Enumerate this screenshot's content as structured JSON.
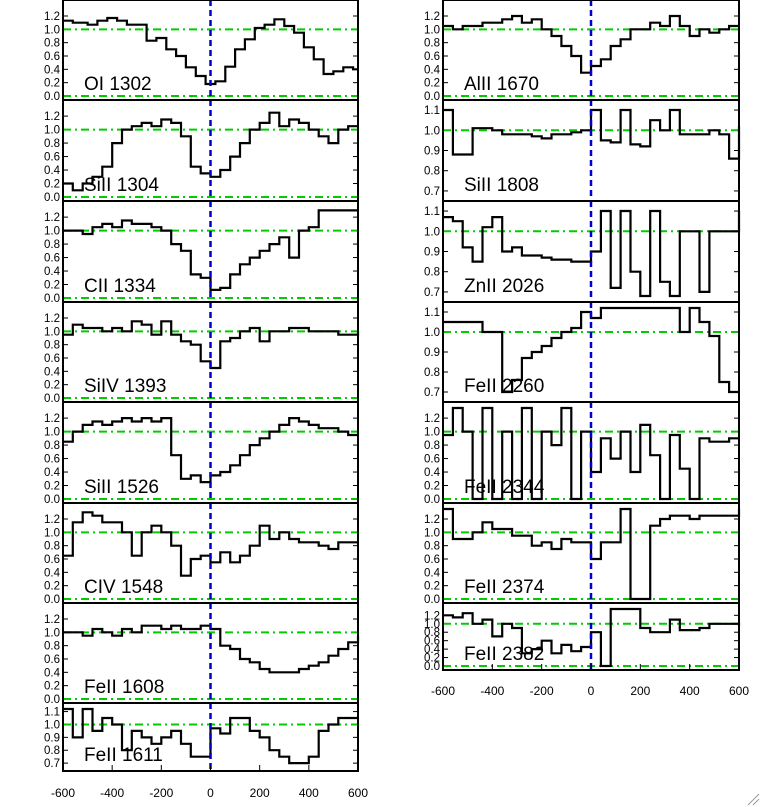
{
  "chart_data": [
    {
      "type": "line",
      "column": "left",
      "ion": "OI 1302",
      "ylim": [
        0,
        1.35
      ],
      "yticks": [
        "1.2",
        "1.0",
        "0.8",
        "0.6",
        "0.4",
        "0.2",
        "0.0"
      ],
      "ytick_values": [
        1.2,
        1.0,
        0.8,
        0.6,
        0.4,
        0.2,
        0.0
      ],
      "continuum": 1.0,
      "zero": 0.0,
      "x": [
        -600,
        -560,
        -500,
        -460,
        -420,
        -380,
        -340,
        -260,
        -220,
        -180,
        -140,
        -100,
        -60,
        -20,
        20,
        60,
        100,
        140,
        180,
        220,
        260,
        300,
        340,
        380,
        420,
        460,
        500,
        540,
        580,
        600
      ],
      "y": [
        1.13,
        1.1,
        1.07,
        1.13,
        1.17,
        1.13,
        1.07,
        0.83,
        0.87,
        0.7,
        0.6,
        0.43,
        0.3,
        0.18,
        0.22,
        0.44,
        0.7,
        0.85,
        1.02,
        1.07,
        1.15,
        1.05,
        0.95,
        0.73,
        0.55,
        0.33,
        0.37,
        0.43,
        0.4,
        0.4
      ]
    },
    {
      "type": "line",
      "column": "left",
      "ion": "SiII 1304",
      "ylim": [
        0,
        1.35
      ],
      "yticks": [
        "1.2",
        "1.0",
        "0.8",
        "0.6",
        "0.4",
        "0.2",
        "0.0"
      ],
      "ytick_values": [
        1.2,
        1.0,
        0.8,
        0.6,
        0.4,
        0.2,
        0.0
      ],
      "continuum": 1.0,
      "zero": 0.0,
      "x": [
        -600,
        -560,
        -520,
        -480,
        -440,
        -400,
        -360,
        -320,
        -280,
        -240,
        -200,
        -160,
        -120,
        -80,
        -40,
        0,
        40,
        80,
        120,
        160,
        200,
        240,
        280,
        320,
        360,
        400,
        440,
        480,
        520,
        560,
        600
      ],
      "y": [
        0.2,
        0.1,
        0.2,
        0.3,
        0.45,
        0.8,
        1.0,
        1.05,
        1.1,
        1.05,
        1.15,
        1.1,
        0.9,
        0.45,
        0.35,
        0.3,
        0.4,
        0.6,
        0.8,
        1.0,
        1.1,
        1.25,
        1.05,
        1.15,
        1.1,
        1.0,
        0.9,
        0.8,
        1.0,
        1.05,
        1.05
      ]
    },
    {
      "type": "line",
      "column": "left",
      "ion": "CII 1334",
      "ylim": [
        0,
        1.35
      ],
      "yticks": [
        "1.2",
        "1.0",
        "0.8",
        "0.6",
        "0.4",
        "0.2",
        "0.0"
      ],
      "ytick_values": [
        1.2,
        1.0,
        0.8,
        0.6,
        0.4,
        0.2,
        0.0
      ],
      "continuum": 1.0,
      "zero": 0.0,
      "x": [
        -600,
        -560,
        -520,
        -480,
        -440,
        -400,
        -360,
        -320,
        -280,
        -240,
        -200,
        -160,
        -120,
        -80,
        -40,
        0,
        40,
        80,
        120,
        160,
        200,
        240,
        280,
        320,
        360,
        400,
        440,
        480,
        520,
        560,
        600
      ],
      "y": [
        1.0,
        1.0,
        0.95,
        1.05,
        1.1,
        1.05,
        1.15,
        1.1,
        1.1,
        1.05,
        1.0,
        0.8,
        0.7,
        0.35,
        0.3,
        0.12,
        0.15,
        0.35,
        0.5,
        0.6,
        0.7,
        0.8,
        0.9,
        0.6,
        1.0,
        1.05,
        1.3,
        1.3,
        1.3,
        1.3,
        1.3
      ]
    },
    {
      "type": "line",
      "column": "left",
      "ion": "SiIV 1393",
      "ylim": [
        0,
        1.35
      ],
      "yticks": [
        "1.2",
        "1.0",
        "0.8",
        "0.6",
        "0.4",
        "0.2",
        "0.0"
      ],
      "ytick_values": [
        1.2,
        1.0,
        0.8,
        0.6,
        0.4,
        0.2,
        0.0
      ],
      "continuum": 1.0,
      "zero": 0.0,
      "x": [
        -600,
        -560,
        -520,
        -480,
        -440,
        -400,
        -360,
        -320,
        -280,
        -240,
        -200,
        -160,
        -120,
        -80,
        -40,
        0,
        40,
        80,
        120,
        160,
        200,
        240,
        280,
        320,
        360,
        400,
        440,
        480,
        520,
        560,
        600
      ],
      "y": [
        0.95,
        1.1,
        1.05,
        1.05,
        1.0,
        1.05,
        1.0,
        1.15,
        1.1,
        0.95,
        1.15,
        0.95,
        0.85,
        0.8,
        0.55,
        0.45,
        0.85,
        0.9,
        1.0,
        1.05,
        0.85,
        1.0,
        1.0,
        1.05,
        1.05,
        1.0,
        1.0,
        1.0,
        0.95,
        0.95,
        1.0
      ]
    },
    {
      "type": "line",
      "column": "left",
      "ion": "SiII 1526",
      "ylim": [
        0,
        1.35
      ],
      "yticks": [
        "1.2",
        "1.0",
        "0.8",
        "0.6",
        "0.4",
        "0.2",
        "0.0"
      ],
      "ytick_values": [
        1.2,
        1.0,
        0.8,
        0.6,
        0.4,
        0.2,
        0.0
      ],
      "continuum": 1.0,
      "zero": 0.0,
      "x": [
        -600,
        -560,
        -520,
        -480,
        -440,
        -400,
        -360,
        -320,
        -280,
        -240,
        -200,
        -160,
        -120,
        -80,
        -40,
        0,
        40,
        80,
        120,
        160,
        200,
        240,
        280,
        320,
        360,
        400,
        440,
        480,
        520,
        560,
        600
      ],
      "y": [
        0.85,
        1.0,
        1.1,
        1.15,
        1.1,
        1.15,
        1.2,
        1.15,
        1.2,
        1.15,
        1.2,
        0.65,
        0.3,
        0.35,
        0.25,
        0.35,
        0.4,
        0.5,
        0.65,
        0.8,
        0.9,
        1.0,
        1.1,
        1.2,
        1.15,
        1.1,
        1.05,
        1.05,
        1.0,
        0.95,
        0.95
      ]
    },
    {
      "type": "line",
      "column": "left",
      "ion": "CIV 1548",
      "ylim": [
        0,
        1.35
      ],
      "yticks": [
        "1.2",
        "1.0",
        "0.8",
        "0.6",
        "0.4",
        "0.2",
        "0.0"
      ],
      "ytick_values": [
        1.2,
        1.0,
        0.8,
        0.6,
        0.4,
        0.2,
        0.0
      ],
      "continuum": 1.0,
      "zero": 0.0,
      "x": [
        -600,
        -560,
        -520,
        -480,
        -440,
        -400,
        -360,
        -320,
        -280,
        -240,
        -200,
        -160,
        -120,
        -80,
        -40,
        0,
        40,
        80,
        120,
        160,
        200,
        240,
        280,
        320,
        360,
        400,
        440,
        480,
        520,
        560,
        600
      ],
      "y": [
        0.65,
        1.15,
        1.3,
        1.25,
        1.15,
        1.15,
        1.0,
        0.65,
        1.0,
        1.1,
        1.0,
        0.8,
        0.35,
        0.6,
        0.65,
        0.55,
        0.7,
        0.55,
        0.65,
        0.8,
        1.1,
        0.9,
        1.0,
        0.9,
        0.85,
        0.85,
        0.8,
        0.75,
        0.85,
        0.85,
        0.85
      ]
    },
    {
      "type": "line",
      "column": "left",
      "ion": "FeII 1608",
      "ylim": [
        0,
        1.35
      ],
      "yticks": [
        "1.2",
        "1.0",
        "0.8",
        "0.6",
        "0.4",
        "0.2",
        "0.0"
      ],
      "ytick_values": [
        1.2,
        1.0,
        0.8,
        0.6,
        0.4,
        0.2,
        0.0
      ],
      "continuum": 1.0,
      "zero": 0.0,
      "x": [
        -600,
        -560,
        -520,
        -480,
        -440,
        -400,
        -360,
        -320,
        -280,
        -240,
        -200,
        -160,
        -120,
        -80,
        -40,
        0,
        40,
        80,
        120,
        160,
        200,
        240,
        280,
        320,
        360,
        400,
        440,
        480,
        520,
        560,
        600
      ],
      "y": [
        1.0,
        1.0,
        0.95,
        1.05,
        1.0,
        0.95,
        1.05,
        1.0,
        1.1,
        1.1,
        1.05,
        1.1,
        1.05,
        1.05,
        1.1,
        1.05,
        0.8,
        0.75,
        0.6,
        0.55,
        0.45,
        0.4,
        0.4,
        0.4,
        0.45,
        0.5,
        0.55,
        0.65,
        0.75,
        0.85,
        0.95
      ]
    },
    {
      "type": "line",
      "column": "left",
      "ion": "FeII 1611",
      "ylim": [
        0.67,
        1.12
      ],
      "yticks": [
        "1.1",
        "1.0",
        "0.9",
        "0.8",
        "0.7"
      ],
      "ytick_values": [
        1.1,
        1.0,
        0.9,
        0.8,
        0.7
      ],
      "continuum": 1.0,
      "x": [
        -600,
        -560,
        -520,
        -480,
        -440,
        -400,
        -360,
        -320,
        -280,
        -240,
        -200,
        -160,
        -120,
        -80,
        -40,
        0,
        40,
        80,
        120,
        160,
        200,
        240,
        280,
        320,
        360,
        400,
        440,
        480,
        520,
        560,
        600
      ],
      "y": [
        1.12,
        0.9,
        1.12,
        0.95,
        1.05,
        1.0,
        0.8,
        0.95,
        0.9,
        0.85,
        0.9,
        0.95,
        0.85,
        0.75,
        0.75,
        0.97,
        0.93,
        1.05,
        1.05,
        0.95,
        0.9,
        0.8,
        0.75,
        0.7,
        0.7,
        0.75,
        0.95,
        1.0,
        1.05,
        1.05,
        1.05
      ]
    },
    {
      "type": "line",
      "column": "right",
      "ion": "AlII 1670",
      "ylim": [
        0,
        1.35
      ],
      "yticks": [
        "1.2",
        "1.0",
        "0.8",
        "0.6",
        "0.4",
        "0.2",
        "0.0"
      ],
      "ytick_values": [
        1.2,
        1.0,
        0.8,
        0.6,
        0.4,
        0.2,
        0.0
      ],
      "continuum": 1.0,
      "zero": 0.0,
      "x": [
        -600,
        -560,
        -520,
        -480,
        -440,
        -400,
        -360,
        -320,
        -280,
        -240,
        -200,
        -160,
        -120,
        -80,
        -40,
        0,
        40,
        80,
        120,
        160,
        200,
        240,
        280,
        320,
        360,
        400,
        440,
        480,
        520,
        560,
        600
      ],
      "y": [
        1.05,
        1.0,
        1.05,
        1.05,
        1.1,
        1.1,
        1.15,
        1.2,
        1.1,
        1.15,
        1.0,
        0.9,
        0.75,
        0.6,
        0.35,
        0.45,
        0.55,
        0.75,
        0.85,
        1.0,
        1.0,
        1.1,
        1.05,
        1.2,
        1.05,
        0.9,
        1.0,
        0.95,
        1.0,
        1.05,
        1.05
      ]
    },
    {
      "type": "line",
      "column": "right",
      "ion": "SiII 1808",
      "ylim": [
        0.67,
        1.12
      ],
      "yticks": [
        "1.1",
        "1.0",
        "0.9",
        "0.8",
        "0.7"
      ],
      "ytick_values": [
        1.1,
        1.0,
        0.9,
        0.8,
        0.7
      ],
      "continuum": 1.0,
      "x": [
        -600,
        -560,
        -520,
        -480,
        -440,
        -400,
        -360,
        -320,
        -280,
        -240,
        -200,
        -160,
        -120,
        -80,
        -40,
        0,
        40,
        80,
        120,
        160,
        200,
        240,
        280,
        320,
        360,
        400,
        440,
        480,
        520,
        560,
        600
      ],
      "y": [
        1.1,
        0.88,
        0.88,
        1.01,
        1.01,
        1.0,
        0.98,
        0.98,
        0.98,
        0.97,
        0.96,
        0.98,
        0.98,
        0.99,
        1.0,
        1.1,
        0.95,
        0.94,
        1.1,
        0.93,
        0.92,
        1.05,
        1.0,
        1.1,
        0.98,
        0.98,
        0.98,
        1.0,
        0.98,
        0.86,
        1.02
      ]
    },
    {
      "type": "line",
      "column": "right",
      "ion": "ZnII 2026",
      "ylim": [
        0.67,
        1.12
      ],
      "yticks": [
        "1.1",
        "1.0",
        "0.9",
        "0.8",
        "0.7"
      ],
      "ytick_values": [
        1.1,
        1.0,
        0.9,
        0.8,
        0.7
      ],
      "continuum": 1.0,
      "x": [
        -600,
        -560,
        -520,
        -480,
        -440,
        -400,
        -360,
        -320,
        -280,
        -240,
        -200,
        -160,
        -120,
        -80,
        -40,
        0,
        40,
        80,
        120,
        160,
        200,
        240,
        280,
        320,
        360,
        400,
        440,
        480,
        520,
        560,
        600
      ],
      "y": [
        1.07,
        1.05,
        0.92,
        0.85,
        1.02,
        1.07,
        0.9,
        0.92,
        0.88,
        0.88,
        0.87,
        0.86,
        0.86,
        0.85,
        0.85,
        0.9,
        1.1,
        0.72,
        1.1,
        0.8,
        0.68,
        1.1,
        0.75,
        0.68,
        1.0,
        1.0,
        0.7,
        1.0,
        1.0,
        1.0,
        1.1
      ]
    },
    {
      "type": "line",
      "column": "right",
      "ion": "FeII 2260",
      "ylim": [
        0.67,
        1.12
      ],
      "yticks": [
        "1.1",
        "1.0",
        "0.9",
        "0.8",
        "0.7"
      ],
      "ytick_values": [
        1.1,
        1.0,
        0.9,
        0.8,
        0.7
      ],
      "continuum": 1.0,
      "x": [
        -600,
        -560,
        -520,
        -480,
        -440,
        -400,
        -360,
        -320,
        -280,
        -240,
        -200,
        -160,
        -120,
        -80,
        -40,
        0,
        40,
        80,
        120,
        160,
        200,
        240,
        280,
        320,
        360,
        400,
        440,
        480,
        520,
        560,
        600
      ],
      "y": [
        1.05,
        1.05,
        1.05,
        1.05,
        1.0,
        1.0,
        0.7,
        0.76,
        0.87,
        0.9,
        0.93,
        0.97,
        1.0,
        1.02,
        1.1,
        1.07,
        1.12,
        1.12,
        1.12,
        1.12,
        1.12,
        1.12,
        1.12,
        1.12,
        1.0,
        1.12,
        1.05,
        0.98,
        0.75,
        0.7,
        0.7
      ]
    },
    {
      "type": "line",
      "column": "right",
      "ion": "FeII 2344",
      "ylim": [
        0,
        1.35
      ],
      "yticks": [
        "1.2",
        "1.0",
        "0.8",
        "0.6",
        "0.4",
        "0.2",
        "0.0"
      ],
      "ytick_values": [
        1.2,
        1.0,
        0.8,
        0.6,
        0.4,
        0.2,
        0.0
      ],
      "continuum": 1.0,
      "zero": 0.0,
      "x": [
        -600,
        -560,
        -520,
        -480,
        -440,
        -400,
        -360,
        -320,
        -280,
        -240,
        -200,
        -160,
        -120,
        -80,
        -40,
        0,
        40,
        80,
        120,
        160,
        200,
        240,
        280,
        320,
        360,
        400,
        440,
        480,
        520,
        560,
        600
      ],
      "y": [
        0.95,
        1.35,
        1.0,
        0.0,
        1.35,
        0.0,
        1.0,
        0.0,
        1.35,
        0.0,
        1.0,
        0.8,
        1.35,
        0.0,
        1.0,
        0.4,
        0.9,
        0.6,
        1.0,
        0.4,
        1.1,
        0.65,
        0.0,
        0.95,
        0.45,
        0.0,
        0.9,
        0.85,
        0.85,
        0.9,
        0.9
      ]
    },
    {
      "type": "line",
      "column": "right",
      "ion": "FeII 2374",
      "ylim": [
        0,
        1.35
      ],
      "yticks": [
        "1.2",
        "1.0",
        "0.8",
        "0.6",
        "0.4",
        "0.2",
        "0.0"
      ],
      "ytick_values": [
        1.2,
        1.0,
        0.8,
        0.6,
        0.4,
        0.2,
        0.0
      ],
      "continuum": 1.0,
      "zero": 0.0,
      "x": [
        -600,
        -560,
        -520,
        -480,
        -440,
        -400,
        -360,
        -320,
        -280,
        -240,
        -200,
        -160,
        -120,
        -80,
        -40,
        0,
        40,
        80,
        120,
        160,
        200,
        240,
        280,
        320,
        360,
        400,
        440,
        480,
        520,
        560,
        600
      ],
      "y": [
        1.35,
        0.9,
        0.9,
        1.0,
        1.15,
        1.05,
        1.05,
        0.95,
        0.95,
        0.8,
        0.85,
        0.75,
        0.9,
        0.85,
        0.85,
        0.6,
        0.85,
        0.85,
        1.35,
        0.0,
        0.0,
        1.1,
        1.2,
        1.25,
        1.25,
        1.2,
        1.25,
        1.25,
        1.25,
        1.25,
        1.35
      ]
    },
    {
      "type": "line",
      "column": "right",
      "ion": "FeII 2382",
      "ylim": [
        0,
        1.35
      ],
      "yticks": [
        "1.2",
        "1.0",
        "0.8",
        "0.6",
        "0.4",
        "0.2",
        "0.0"
      ],
      "ytick_values": [
        1.2,
        1.0,
        0.8,
        0.6,
        0.4,
        0.2,
        0.0
      ],
      "continuum": 1.0,
      "zero": 0.0,
      "x": [
        -600,
        -560,
        -520,
        -480,
        -440,
        -400,
        -360,
        -320,
        -280,
        -240,
        -200,
        -160,
        -120,
        -80,
        -40,
        0,
        40,
        80,
        120,
        160,
        200,
        240,
        280,
        320,
        360,
        400,
        440,
        480,
        520,
        560,
        600
      ],
      "y": [
        1.2,
        1.15,
        1.25,
        1.0,
        1.1,
        0.7,
        1.0,
        0.9,
        0.3,
        0.4,
        0.6,
        0.3,
        0.5,
        0.35,
        0.45,
        0.8,
        0.0,
        1.35,
        1.35,
        1.35,
        0.9,
        0.8,
        0.8,
        1.1,
        0.85,
        0.85,
        0.9,
        1.0,
        1.0,
        1.0,
        0.95
      ]
    }
  ],
  "x_axis": {
    "xlim": [
      -600,
      600
    ],
    "tick_values": [
      -600,
      -400,
      -200,
      0,
      200,
      400,
      600
    ],
    "tick_labels": [
      "-600",
      "-400",
      "-200",
      "0",
      "200",
      "400",
      "600"
    ]
  },
  "colors": {
    "axes": "#000000",
    "spectrum": "#000000",
    "reference_lines": "#00cc00",
    "zero_velocity": "#0000cc"
  }
}
